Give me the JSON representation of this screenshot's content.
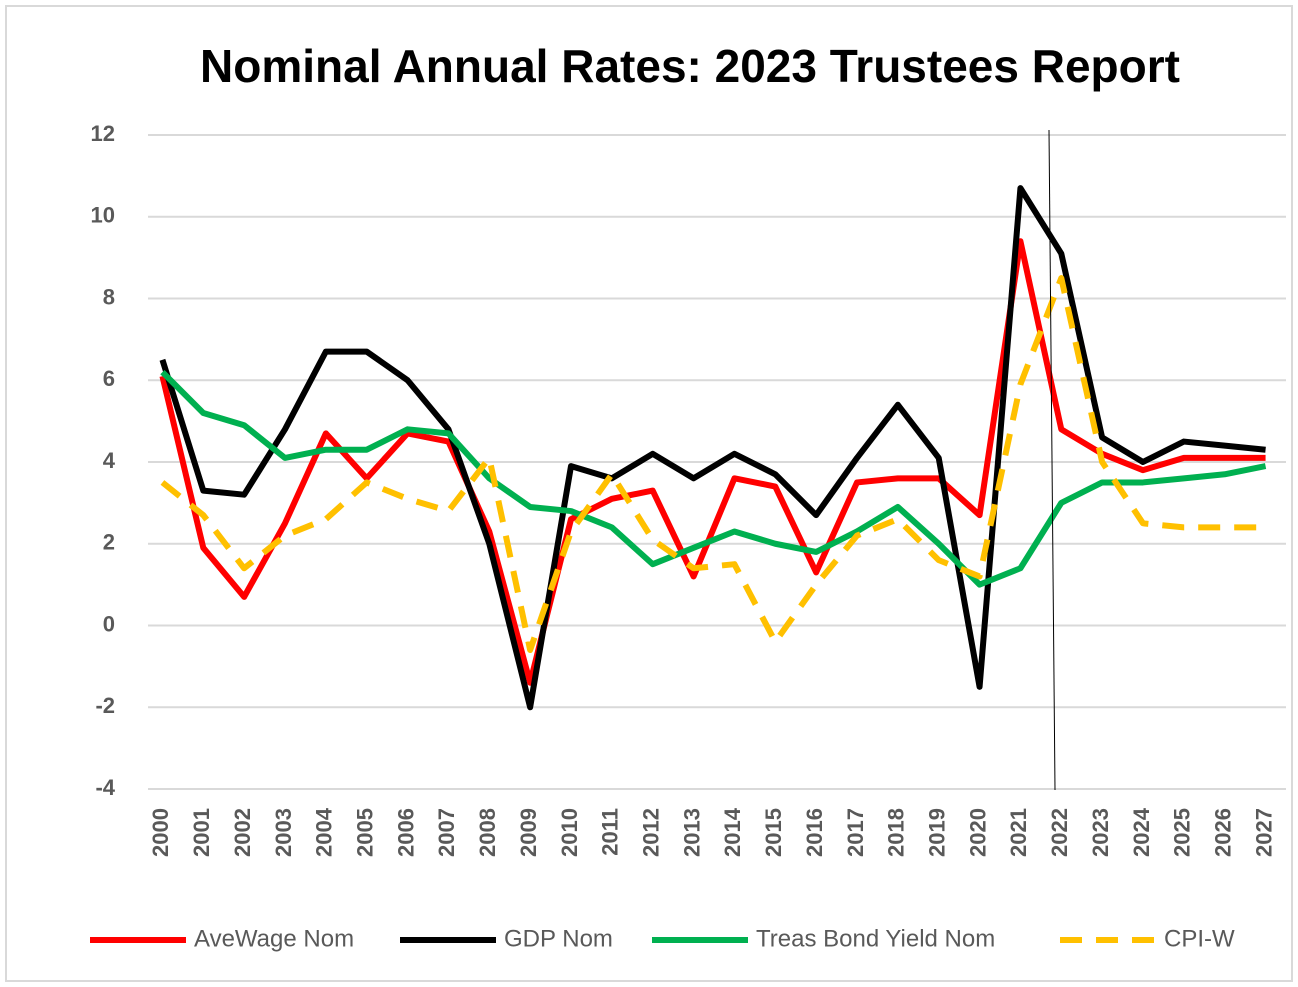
{
  "chart_data": {
    "type": "line",
    "title": "Nominal Annual Rates:  2023 Trustees Report",
    "categories": [
      "2000",
      "2001",
      "2002",
      "2003",
      "2004",
      "2005",
      "2006",
      "2007",
      "2008",
      "2009",
      "2010",
      "2011",
      "2012",
      "2013",
      "2014",
      "2015",
      "2016",
      "2017",
      "2018",
      "2019",
      "2020",
      "2021",
      "2022",
      "2023",
      "2024",
      "2025",
      "2026",
      "2027"
    ],
    "series": [
      {
        "name": "AveWage Nom",
        "color": "#ff0000",
        "values": [
          6.1,
          1.9,
          0.7,
          2.5,
          4.7,
          3.6,
          4.7,
          4.5,
          2.3,
          -1.4,
          2.6,
          3.1,
          3.3,
          1.2,
          3.6,
          3.4,
          1.3,
          3.5,
          3.6,
          3.6,
          2.7,
          9.4,
          4.8,
          4.2,
          3.8,
          4.1,
          4.1,
          4.1
        ]
      },
      {
        "name": "GDP Nom",
        "color": "#000000",
        "values": [
          6.5,
          3.3,
          3.2,
          4.8,
          6.7,
          6.7,
          6.0,
          4.8,
          2.0,
          -2.0,
          3.9,
          3.6,
          4.2,
          3.6,
          4.2,
          3.7,
          2.7,
          4.1,
          5.4,
          4.1,
          -1.5,
          10.7,
          9.1,
          4.6,
          4.0,
          4.5,
          4.4,
          4.3
        ]
      },
      {
        "name": "Treas Bond Yield Nom",
        "color": "#00b050",
        "values": [
          6.2,
          5.2,
          4.9,
          4.1,
          4.3,
          4.3,
          4.8,
          4.7,
          3.6,
          2.9,
          2.8,
          2.4,
          1.5,
          1.9,
          2.3,
          2.0,
          1.8,
          2.3,
          2.9,
          2.0,
          1.0,
          1.4,
          3.0,
          3.5,
          3.5,
          3.6,
          3.7,
          3.9
        ]
      },
      {
        "name": "CPI-W",
        "color": "#ffc000",
        "linestyle": "dashed",
        "values": [
          3.5,
          2.7,
          1.4,
          2.2,
          2.6,
          3.5,
          3.1,
          2.8,
          4.1,
          -0.6,
          2.3,
          3.7,
          2.1,
          1.4,
          1.5,
          -0.4,
          1.0,
          2.2,
          2.6,
          1.6,
          1.2,
          5.9,
          8.5,
          4.0,
          2.5,
          2.4,
          2.4,
          2.4
        ]
      }
    ],
    "ylim": [
      -4,
      12
    ],
    "yticks": [
      -4,
      -2,
      0,
      2,
      4,
      6,
      8,
      10,
      12
    ],
    "grid": true,
    "legend": "bottom"
  }
}
